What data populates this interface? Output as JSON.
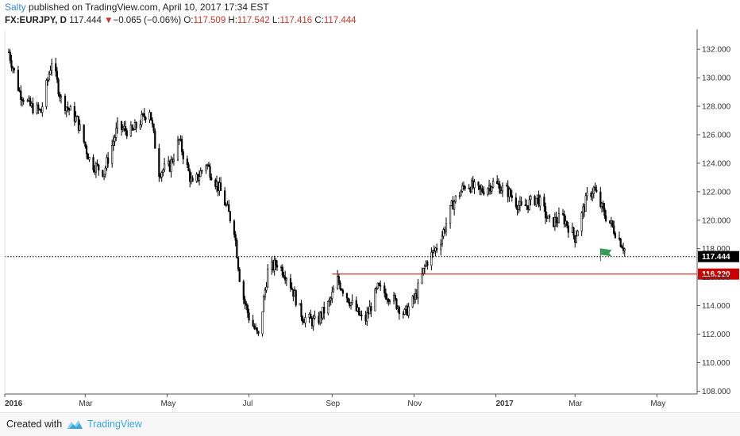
{
  "header": {
    "author": "Salty",
    "published_text": " published on TradingView.com, April 10, 2017 17:34 EST"
  },
  "info": {
    "symbol": "FX:EURJPY, D",
    "last": "117.444",
    "arrow": "▼",
    "change": "−0.065 (−0.06%)",
    "o_label": "O:",
    "o_value": "117.509",
    "h_label": "H:",
    "h_value": "117.542",
    "l_label": "L:",
    "l_value": "117.416",
    "c_label": "C:",
    "c_value": "117.444"
  },
  "footer": {
    "created_with": "Created with",
    "brand": "TradingView"
  },
  "colors": {
    "candle": "#000000",
    "support_line": "#cc0000",
    "flag": "#3a9a5a",
    "axis_line": "#555555"
  },
  "chart_data": {
    "type": "candlestick",
    "symbol": "FX:EURJPY",
    "interval": "D",
    "title": "",
    "xlabel": "",
    "ylabel": "",
    "ylim": [
      107.8,
      133.4
    ],
    "y_ticks": [
      {
        "value": 108,
        "label": "108.000"
      },
      {
        "value": 110,
        "label": "110.000"
      },
      {
        "value": 112,
        "label": "112.000"
      },
      {
        "value": 114,
        "label": "114.000"
      },
      {
        "value": 116,
        "label": "116.000"
      },
      {
        "value": 118,
        "label": "118.000"
      },
      {
        "value": 120,
        "label": "120.000"
      },
      {
        "value": 122,
        "label": "122.000"
      },
      {
        "value": 124,
        "label": "124.000"
      },
      {
        "value": 126,
        "label": "126.000"
      },
      {
        "value": 128,
        "label": "128.000"
      },
      {
        "value": 130,
        "label": "130.000"
      },
      {
        "value": 132,
        "label": "132.000"
      }
    ],
    "x_range": [
      "2016-01-01",
      "2017-05-31"
    ],
    "x_ticks": [
      {
        "date": "2016-01-01",
        "label": "2016",
        "bold": true
      },
      {
        "date": "2016-03-01",
        "label": "Mar",
        "bold": false
      },
      {
        "date": "2016-05-01",
        "label": "May",
        "bold": false
      },
      {
        "date": "2016-07-01",
        "label": "Jul",
        "bold": false
      },
      {
        "date": "2016-09-01",
        "label": "Sep",
        "bold": false
      },
      {
        "date": "2016-11-01",
        "label": "Nov",
        "bold": false
      },
      {
        "date": "2017-01-01",
        "label": "2017",
        "bold": true
      },
      {
        "date": "2017-03-01",
        "label": "Mar",
        "bold": false
      },
      {
        "date": "2017-05-01",
        "label": "May",
        "bold": false
      }
    ],
    "last_date": "2017-04-10",
    "series": [
      {
        "date": "2016-01-04",
        "close": 131.8
      },
      {
        "date": "2016-01-12",
        "close": 129.0
      },
      {
        "date": "2016-01-20",
        "close": 128.0
      },
      {
        "date": "2016-01-28",
        "close": 127.6
      },
      {
        "date": "2016-02-05",
        "close": 131.2
      },
      {
        "date": "2016-02-12",
        "close": 128.5
      },
      {
        "date": "2016-02-24",
        "close": 127.0
      },
      {
        "date": "2016-03-05",
        "close": 124.0
      },
      {
        "date": "2016-03-15",
        "close": 123.4
      },
      {
        "date": "2016-03-25",
        "close": 126.5
      },
      {
        "date": "2016-04-05",
        "close": 126.2
      },
      {
        "date": "2016-04-18",
        "close": 127.8
      },
      {
        "date": "2016-04-25",
        "close": 123.4
      },
      {
        "date": "2016-05-03",
        "close": 123.8
      },
      {
        "date": "2016-05-10",
        "close": 125.6
      },
      {
        "date": "2016-05-20",
        "close": 122.4
      },
      {
        "date": "2016-05-30",
        "close": 124.0
      },
      {
        "date": "2016-06-10",
        "close": 122.0
      },
      {
        "date": "2016-06-20",
        "close": 119.4
      },
      {
        "date": "2016-06-25",
        "close": 115.2
      },
      {
        "date": "2016-07-01",
        "close": 113.2
      },
      {
        "date": "2016-07-08",
        "close": 111.8
      },
      {
        "date": "2016-07-15",
        "close": 116.4
      },
      {
        "date": "2016-07-22",
        "close": 117.0
      },
      {
        "date": "2016-07-30",
        "close": 116.0
      },
      {
        "date": "2016-08-10",
        "close": 113.2
      },
      {
        "date": "2016-08-20",
        "close": 112.8
      },
      {
        "date": "2016-08-30",
        "close": 114.2
      },
      {
        "date": "2016-09-05",
        "close": 115.8
      },
      {
        "date": "2016-09-15",
        "close": 114.2
      },
      {
        "date": "2016-09-25",
        "close": 112.8
      },
      {
        "date": "2016-10-05",
        "close": 115.2
      },
      {
        "date": "2016-10-15",
        "close": 114.6
      },
      {
        "date": "2016-10-25",
        "close": 113.4
      },
      {
        "date": "2016-11-02",
        "close": 114.6
      },
      {
        "date": "2016-11-10",
        "close": 117.0
      },
      {
        "date": "2016-11-20",
        "close": 118.4
      },
      {
        "date": "2016-11-30",
        "close": 121.2
      },
      {
        "date": "2016-12-10",
        "close": 122.6
      },
      {
        "date": "2016-12-20",
        "close": 122.0
      },
      {
        "date": "2016-12-30",
        "close": 122.6
      },
      {
        "date": "2017-01-10",
        "close": 122.0
      },
      {
        "date": "2017-01-20",
        "close": 120.8
      },
      {
        "date": "2017-02-01",
        "close": 121.6
      },
      {
        "date": "2017-02-10",
        "close": 119.8
      },
      {
        "date": "2017-02-20",
        "close": 120.2
      },
      {
        "date": "2017-03-01",
        "close": 118.8
      },
      {
        "date": "2017-03-10",
        "close": 121.6
      },
      {
        "date": "2017-03-15",
        "close": 122.2
      },
      {
        "date": "2017-03-22",
        "close": 120.6
      },
      {
        "date": "2017-03-31",
        "close": 119.2
      },
      {
        "date": "2017-04-10",
        "close": 117.444
      }
    ],
    "horizontal_lines": [
      {
        "value": 117.444,
        "style": "dotted",
        "color": "#000000",
        "price_label": "117.444",
        "label_bg": "#000000",
        "label_color": "#ffffff"
      },
      {
        "value": 116.22,
        "style": "solid",
        "color": "#cc0000",
        "from_date": "2016-09-01",
        "price_label": "116.220",
        "label_bg": "#cc0000",
        "label_color": "#ffffff"
      }
    ],
    "annotations": [
      {
        "type": "flag",
        "date": "2017-03-20",
        "value": 117.8,
        "color": "#3a9a5a"
      }
    ],
    "grid": false
  }
}
